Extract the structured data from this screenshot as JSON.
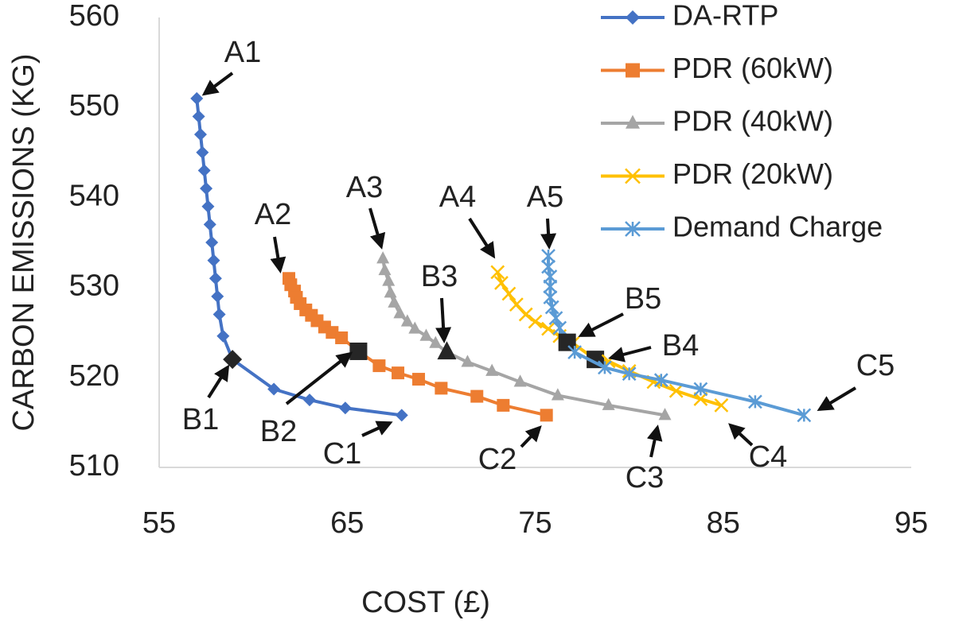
{
  "chart_data": {
    "type": "line",
    "xlabel": "COST (£)",
    "ylabel": "CARBON EMISSIONS (KG)",
    "xlim": [
      55,
      95
    ],
    "xticks": [
      55,
      65,
      75,
      85,
      95
    ],
    "ylim": [
      510,
      560
    ],
    "yticks": [
      510,
      520,
      530,
      540,
      550,
      560
    ],
    "grid": false,
    "legend": "top right",
    "series": [
      {
        "name": "DA-RTP",
        "color": "#4472c4",
        "marker": "diamond",
        "x": [
          57.0,
          57.1,
          57.2,
          57.3,
          57.4,
          57.5,
          57.6,
          57.7,
          57.8,
          57.9,
          58.0,
          58.1,
          58.2,
          58.4,
          58.9,
          61.1,
          63.0,
          64.9,
          67.9
        ],
        "values": [
          551,
          549,
          547,
          545,
          543,
          541,
          539,
          537,
          535,
          533,
          531,
          529,
          527,
          524.6,
          522,
          518.7,
          517.5,
          516.6,
          515.8
        ],
        "highlight": {
          "index": 14,
          "color": "#262626"
        }
      },
      {
        "name": "PDR (60kW)",
        "color": "#ed7d31",
        "marker": "square",
        "x": [
          61.9,
          62.0,
          62.2,
          62.3,
          62.5,
          62.8,
          63.1,
          63.4,
          63.8,
          64.2,
          64.7,
          65.6,
          66.7,
          67.7,
          68.8,
          70.0,
          71.9,
          73.3,
          75.6
        ],
        "values": [
          531.0,
          530.3,
          529.6,
          528.9,
          528.2,
          527.5,
          526.9,
          526.3,
          525.6,
          525.0,
          524.4,
          522.9,
          521.3,
          520.5,
          519.8,
          518.8,
          517.9,
          516.9,
          515.8
        ],
        "highlight": {
          "index": 11,
          "color": "#262626"
        }
      },
      {
        "name": "PDR (40kW)",
        "color": "#a5a5a5",
        "marker": "triangle",
        "x": [
          66.9,
          67.0,
          67.2,
          67.3,
          67.5,
          67.8,
          68.2,
          68.6,
          69.2,
          69.7,
          70.3,
          71.4,
          72.7,
          74.2,
          76.2,
          78.9,
          81.9
        ],
        "values": [
          533.2,
          531.9,
          530.7,
          529.4,
          528.3,
          527.1,
          526.2,
          525.4,
          524.6,
          523.8,
          522.8,
          521.7,
          520.7,
          519.5,
          518.0,
          516.9,
          515.8
        ],
        "highlight": {
          "index": 10,
          "color": "#262626"
        }
      },
      {
        "name": "PDR (20kW)",
        "color": "#ffc000",
        "marker": "x",
        "x": [
          73.0,
          73.2,
          73.6,
          74.0,
          74.5,
          75.0,
          75.7,
          76.3,
          77.0,
          78.2,
          78.9,
          80.0,
          81.3,
          82.5,
          83.8,
          84.9
        ],
        "values": [
          531.7,
          530.5,
          529.3,
          528.1,
          527.0,
          526.2,
          525.4,
          524.6,
          523.8,
          522.0,
          521.8,
          520.7,
          519.5,
          518.5,
          517.6,
          516.9
        ],
        "highlight": {
          "index": 9,
          "color": "#262626"
        }
      },
      {
        "name": "Demand Charge",
        "color": "#5b9bd5",
        "marker": "asterisk",
        "x": [
          75.7,
          75.7,
          75.8,
          75.8,
          75.8,
          75.9,
          76.1,
          76.3,
          76.7,
          77.1,
          78.7,
          80.0,
          81.7,
          83.8,
          86.7,
          89.3
        ],
        "values": [
          533.5,
          532.3,
          531.2,
          530.1,
          528.9,
          527.8,
          526.6,
          525.5,
          523.9,
          522.8,
          521.1,
          520.4,
          519.7,
          518.7,
          517.3,
          515.8
        ],
        "highlight": {
          "index": 8,
          "color": "#262626"
        }
      }
    ],
    "annotations": [
      "A1",
      "B1",
      "C1",
      "A2",
      "B2",
      "C2",
      "A3",
      "B3",
      "C3",
      "A4",
      "B4",
      "C4",
      "A5",
      "B5",
      "C5"
    ]
  }
}
